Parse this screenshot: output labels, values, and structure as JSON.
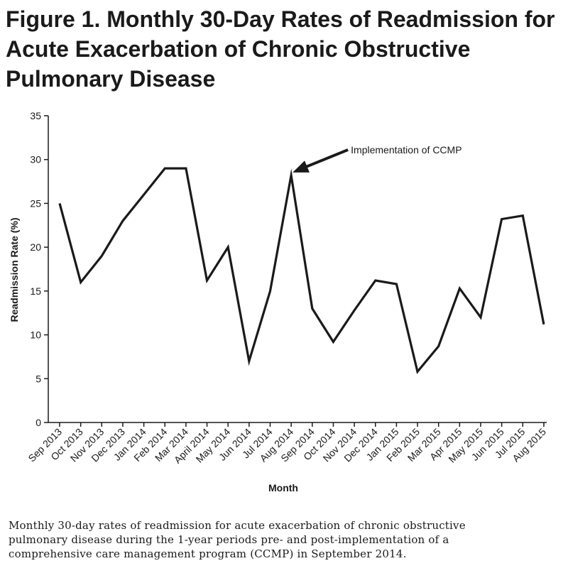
{
  "figure": {
    "title": "Figure 1. Monthly 30-Day Rates of Readmission for Acute Exacerbation of Chronic Obstructive Pulmonary Disease",
    "caption": "Monthly 30-day rates of readmission for acute exacerbation of chronic obstructive pulmonary disease during the 1-year periods pre- and post-implementation of a comprehensive care management program (CCMP) in September 2014."
  },
  "chart_data": {
    "type": "line",
    "title": "",
    "xlabel": "Month",
    "ylabel": "Readmission Rate (%)",
    "ylim": [
      0,
      35
    ],
    "yticks": [
      0,
      5,
      10,
      15,
      20,
      25,
      30,
      35
    ],
    "grid": false,
    "legend": "none",
    "categories": [
      "Sep 2013",
      "Oct 2013",
      "Nov 2013",
      "Dec 2013",
      "Jan 2014",
      "Feb 2014",
      "Mar 2014",
      "April 2014",
      "May 2014",
      "Jun 2014",
      "Jul 2014",
      "Aug 2014",
      "Sep 2014",
      "Oct 2014",
      "Nov 2014",
      "Dec 2014",
      "Jan 2015",
      "Feb 2015",
      "Mar 2015",
      "Apr 2015",
      "May 2015",
      "Jun 2015",
      "Jul 2015",
      "Aug 2015"
    ],
    "series": [
      {
        "values": [
          25,
          16,
          19,
          23,
          26,
          29,
          29,
          16.2,
          20,
          7,
          15,
          28.2,
          13,
          9.2,
          12.8,
          16.2,
          15.8,
          5.8,
          8.7,
          15.3,
          12,
          23.2,
          23.6,
          11.2
        ],
        "color": "#1a1a1a"
      }
    ],
    "annotations": [
      {
        "text": "Implementation of CCMP",
        "category": "Aug 2014",
        "value": 28.2
      }
    ]
  }
}
